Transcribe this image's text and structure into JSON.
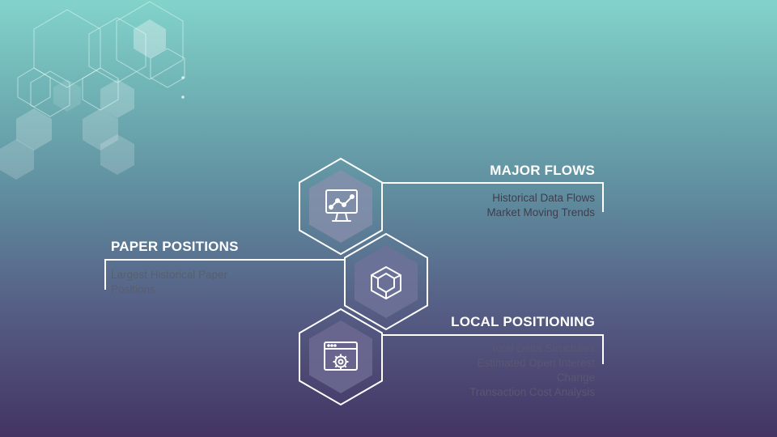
{
  "items": [
    {
      "title": "MAJOR FLOWS",
      "icon": "chart-monitor-icon",
      "lines": [
        "Historical Data Flows",
        "Market Moving Trends"
      ],
      "text_color": "#3e3e4e"
    },
    {
      "title": "PAPER POSITIONS",
      "icon": "cube-icon",
      "lines": [
        "Largest Historical Paper",
        "Positions"
      ],
      "text_color": "#595e6c"
    },
    {
      "title": "LOCAL POSITIONING",
      "icon": "browser-gear-icon",
      "lines": [
        "Total Delta Structures",
        "Estimated Open Interest",
        "Change",
        "Transaction Cost Analysis"
      ],
      "text_color": "#5a5673"
    }
  ],
  "colors": {
    "bg_top": "#83d3cb",
    "bg_bottom": "#433463",
    "line": "#ffffff"
  }
}
